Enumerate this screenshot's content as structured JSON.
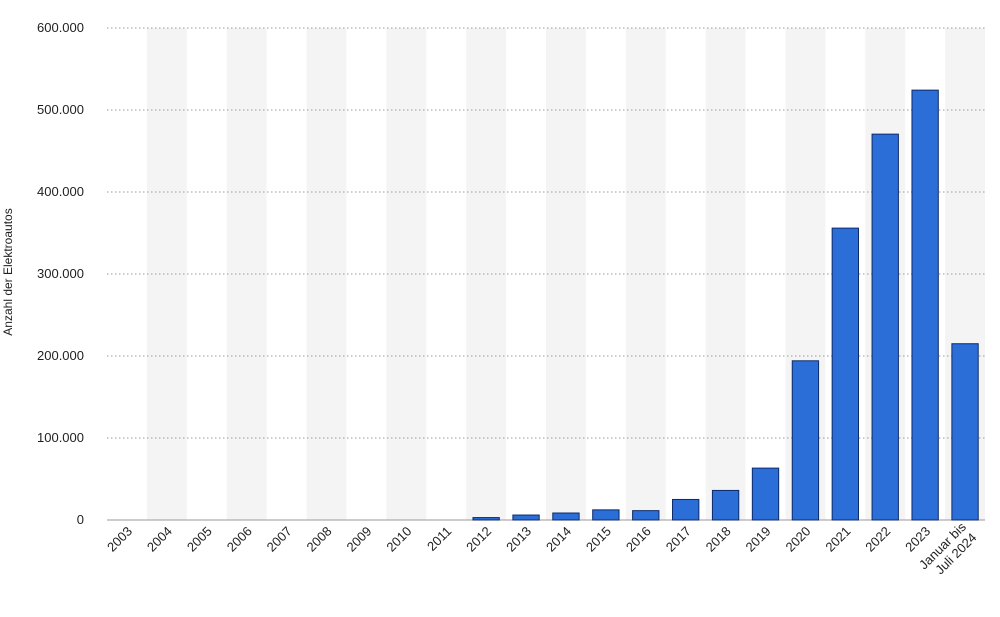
{
  "chart_data": {
    "type": "bar",
    "title": "",
    "xlabel": "",
    "ylabel": "Anzahl der Elektroautos",
    "categories": [
      "2003",
      "2004",
      "2005",
      "2006",
      "2007",
      "2008",
      "2009",
      "2010",
      "2011",
      "2012",
      "2013",
      "2014",
      "2015",
      "2016",
      "2017",
      "2018",
      "2019",
      "2020",
      "2021",
      "2022",
      "2023",
      "Januar bis Juli 2024"
    ],
    "values": [
      0,
      0,
      0,
      0,
      0,
      0,
      0,
      0,
      0,
      2956,
      6051,
      8522,
      12363,
      11410,
      25056,
      36062,
      63281,
      194163,
      355961,
      470559,
      524219,
      214975
    ],
    "ylim": [
      0,
      600000
    ],
    "yticks": [
      0,
      100000,
      200000,
      300000,
      400000,
      500000,
      600000
    ],
    "ytick_labels": [
      "0",
      "100.000",
      "200.000",
      "300.000",
      "400.000",
      "500.000",
      "600.000"
    ],
    "grid": true,
    "bar_color": "#2b6ed8",
    "bar_edge_color": "#0c2a6b",
    "band_color": "#f4f4f4"
  }
}
